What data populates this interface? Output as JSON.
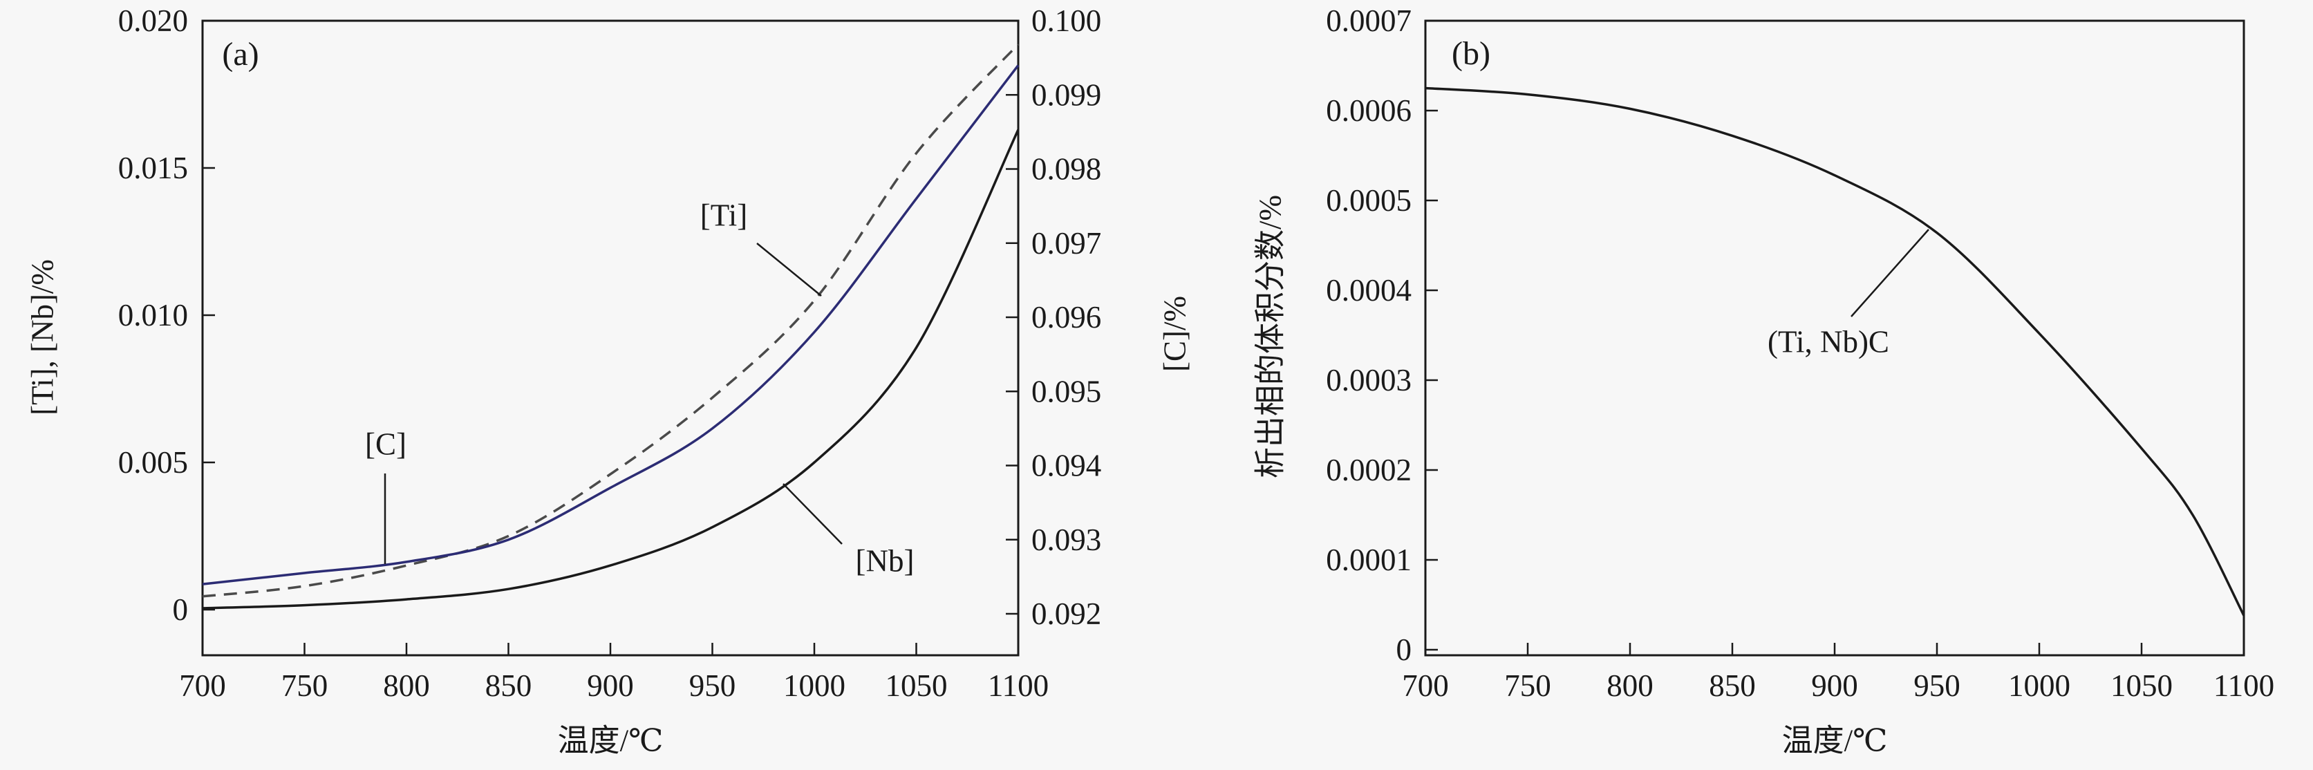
{
  "figure": {
    "colors": {
      "background": "#f7f7f7",
      "axis": "#1a1a1a",
      "ti_curve": "#4a4a4a",
      "c_curve": "#2c2c74",
      "nb_curve": "#1a1a1a",
      "precipitate_curve": "#1a1a1a"
    }
  },
  "chart_data": [
    {
      "id": "a",
      "type": "line",
      "panel_label": "(a)",
      "xlabel": "温度/℃",
      "ylabel_left": "[Ti], [Nb]/%",
      "ylabel_right": "[C]/%",
      "x_range": [
        700,
        1100
      ],
      "y_left_range": [
        0,
        0.02
      ],
      "y_right_range": [
        0.092,
        0.1
      ],
      "grid": false,
      "legend": "none (in-plot leader-line labels)",
      "x_ticks": {
        "values": [
          700,
          750,
          800,
          850,
          900,
          950,
          1000,
          1050,
          1100
        ],
        "labels": [
          "700",
          "750",
          "800",
          "850",
          "900",
          "950",
          "1000",
          "1050",
          "1100"
        ]
      },
      "y_left_ticks": {
        "values": [
          0,
          0.005,
          0.01,
          0.015,
          0.02
        ],
        "labels": [
          "0",
          "0.005",
          "0.010",
          "0.015",
          "0.020"
        ]
      },
      "y_right_ticks": {
        "values": [
          0.092,
          0.093,
          0.094,
          0.095,
          0.096,
          0.097,
          0.098,
          0.099,
          0.1
        ],
        "labels": [
          "0.092",
          "0.093",
          "0.094",
          "0.095",
          "0.096",
          "0.097",
          "0.098",
          "0.099",
          "0.100"
        ]
      },
      "series": [
        {
          "name": "[Ti]",
          "axis": "left",
          "line_style": "dashed",
          "color": "#4a4a4a",
          "points": [
            [
              700,
              0.00045
            ],
            [
              750,
              0.0008
            ],
            [
              800,
              0.0015
            ],
            [
              850,
              0.0025
            ],
            [
              900,
              0.0046
            ],
            [
              950,
              0.0072
            ],
            [
              1000,
              0.0105
            ],
            [
              1050,
              0.0155
            ],
            [
              1100,
              0.0192
            ]
          ]
        },
        {
          "name": "[C]",
          "axis": "right",
          "line_style": "solid",
          "color": "#2c2c74",
          "points": [
            [
              700,
              0.0924
            ],
            [
              750,
              0.09255
            ],
            [
              800,
              0.0927
            ],
            [
              850,
              0.093
            ],
            [
              900,
              0.0937
            ],
            [
              950,
              0.0945
            ],
            [
              1000,
              0.0958
            ],
            [
              1050,
              0.0976
            ],
            [
              1100,
              0.0994
            ]
          ]
        },
        {
          "name": "[Nb]",
          "axis": "left",
          "line_style": "solid",
          "color": "#1a1a1a",
          "points": [
            [
              700,
              5e-05
            ],
            [
              750,
              0.00015
            ],
            [
              800,
              0.00035
            ],
            [
              850,
              0.0007
            ],
            [
              900,
              0.0015
            ],
            [
              950,
              0.0028
            ],
            [
              1000,
              0.005
            ],
            [
              1050,
              0.0089
            ],
            [
              1100,
              0.0163
            ]
          ]
        }
      ],
      "annotations": [
        {
          "text": "[Ti]"
        },
        {
          "text": "[C]"
        },
        {
          "text": "[Nb]"
        }
      ]
    },
    {
      "id": "b",
      "type": "line",
      "panel_label": "(b)",
      "xlabel": "温度/℃",
      "ylabel_left": "析出相的体积分数/%",
      "x_range": [
        700,
        1100
      ],
      "y_left_range": [
        0,
        0.0007
      ],
      "grid": false,
      "legend": "none (in-plot leader-line label)",
      "x_ticks": {
        "values": [
          700,
          750,
          800,
          850,
          900,
          950,
          1000,
          1050,
          1100
        ],
        "labels": [
          "700",
          "750",
          "800",
          "850",
          "900",
          "950",
          "1000",
          "1050",
          "1100"
        ]
      },
      "y_left_ticks": {
        "values": [
          0,
          0.0001,
          0.0002,
          0.0003,
          0.0004,
          0.0005,
          0.0006,
          0.0007
        ],
        "labels": [
          "0",
          "0.0001",
          "0.0002",
          "0.0003",
          "0.0004",
          "0.0005",
          "0.0006",
          "0.0007"
        ]
      },
      "series": [
        {
          "name": "(Ti, Nb)C",
          "axis": "left",
          "line_style": "solid",
          "color": "#1a1a1a",
          "points": [
            [
              700,
              0.000625
            ],
            [
              750,
              0.000618
            ],
            [
              800,
              0.000602
            ],
            [
              850,
              0.000572
            ],
            [
              900,
              0.000528
            ],
            [
              950,
              0.000464
            ],
            [
              1000,
              0.000352
            ],
            [
              1050,
              0.000224
            ],
            [
              1075,
              0.00015
            ],
            [
              1100,
              3.8e-05
            ]
          ]
        }
      ],
      "annotations": [
        {
          "text": "(Ti, Nb)C"
        }
      ]
    }
  ]
}
